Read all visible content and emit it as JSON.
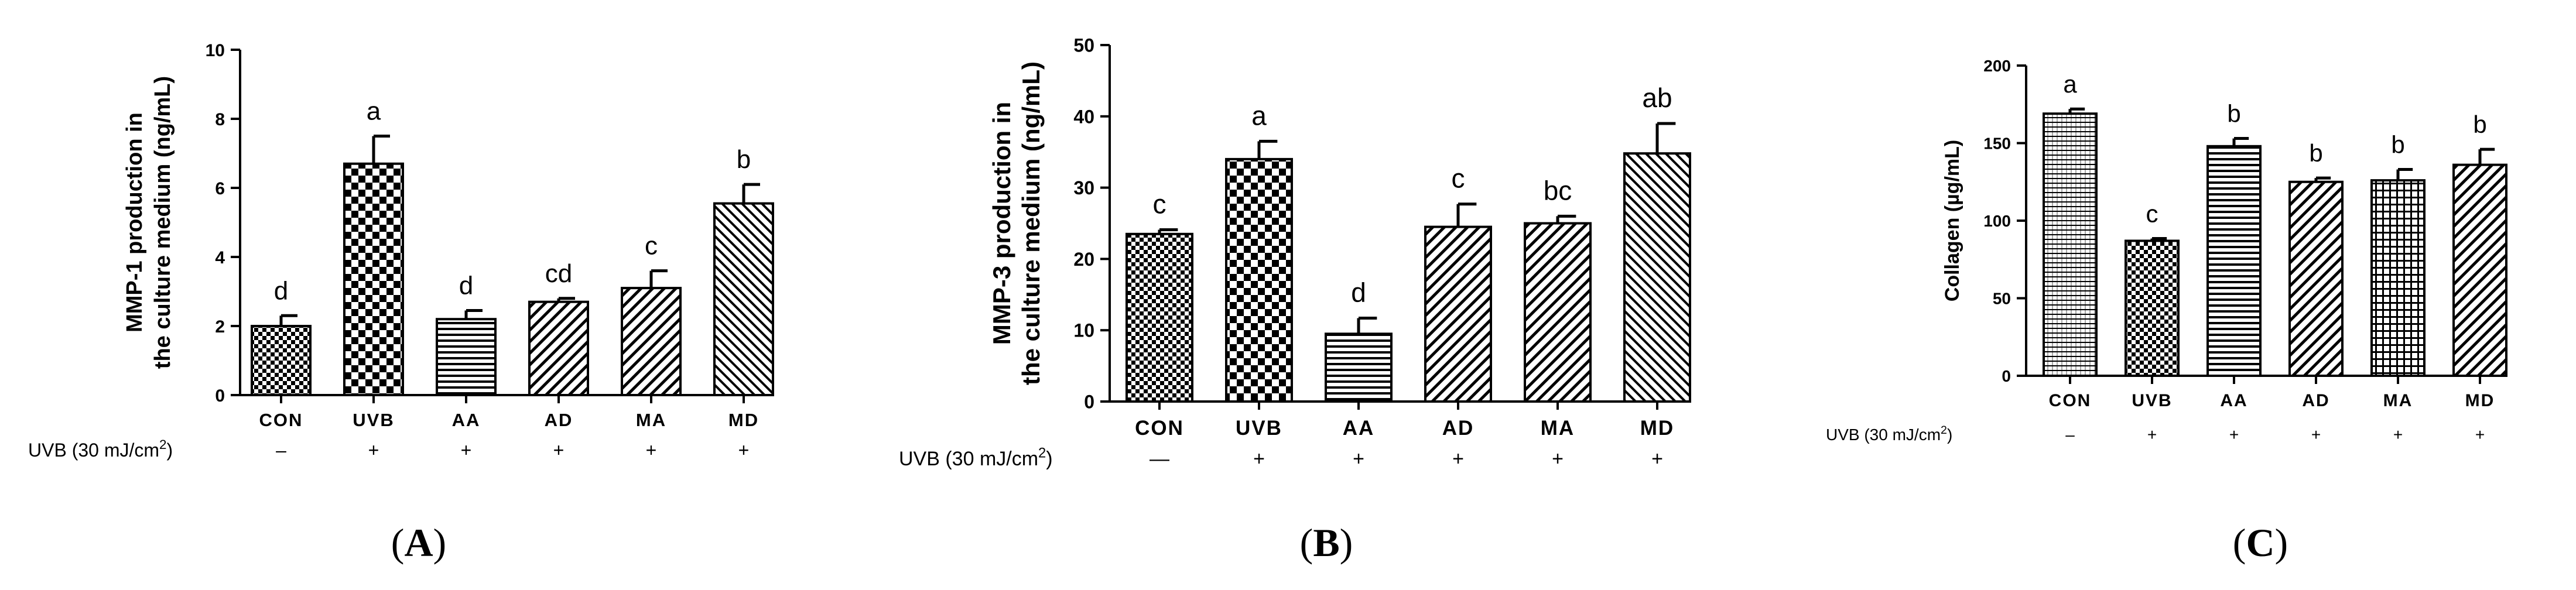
{
  "chart_data": [
    {
      "type": "bar",
      "panel_label_letter": "A",
      "title": "",
      "ylabel_line1": "MMP-1 production in",
      "ylabel_line2": "the culture medium (ng/mL)",
      "ylim": [
        0,
        10
      ],
      "yticks": [
        0,
        2,
        4,
        6,
        8,
        10
      ],
      "yticks_text": [
        "0",
        "2",
        "4",
        "6",
        "8",
        "10"
      ],
      "categories": [
        "CON",
        "UVB",
        "AA",
        "AD",
        "MA",
        "MD"
      ],
      "values": [
        2.0,
        6.7,
        2.2,
        2.7,
        3.1,
        5.55
      ],
      "errors": [
        0.3,
        0.8,
        0.25,
        0.1,
        0.5,
        0.55
      ],
      "significance": [
        "d",
        "a",
        "d",
        "cd",
        "c",
        "b"
      ],
      "patterns": [
        "checker",
        "checker-bold",
        "horizontal",
        "diag-right",
        "diag-right",
        "diag-left"
      ],
      "uvb_label": "UVB (30 mJ/cm",
      "uvb_sup": "2",
      "uvb_close": ")",
      "uvb_signs": [
        "–",
        "+",
        "+",
        "+",
        "+",
        "+"
      ]
    },
    {
      "type": "bar",
      "panel_label_letter": "B",
      "title": "",
      "ylabel_line1": "MMP-3 production in",
      "ylabel_line2": "the culture medium (ng/mL)",
      "ylim": [
        0,
        50
      ],
      "yticks": [
        0,
        10,
        20,
        30,
        40,
        50
      ],
      "yticks_text": [
        "0",
        "10",
        "20",
        "30",
        "40",
        "50"
      ],
      "categories": [
        "CON",
        "UVB",
        "AA",
        "AD",
        "MA",
        "MD"
      ],
      "values": [
        23.5,
        34.0,
        9.5,
        24.5,
        25.0,
        34.8
      ],
      "errors": [
        0.6,
        2.5,
        2.2,
        3.2,
        1.0,
        4.2
      ],
      "significance": [
        "c",
        "a",
        "d",
        "c",
        "bc",
        "ab"
      ],
      "patterns": [
        "checker",
        "checker-bold",
        "horizontal",
        "diag-right",
        "diag-right",
        "diag-left"
      ],
      "uvb_label": "UVB (30 mJ/cm",
      "uvb_sup": "2",
      "uvb_close": ")",
      "uvb_signs": [
        "—",
        "+",
        "+",
        "+",
        "+",
        "+"
      ]
    },
    {
      "type": "bar",
      "panel_label_letter": "C",
      "title": "",
      "ylabel_line1": "Collagen (µg/mL)",
      "ylabel_line2": "",
      "ylim": [
        0,
        200
      ],
      "yticks": [
        0,
        50,
        100,
        150,
        200
      ],
      "yticks_text": [
        "0",
        "50",
        "100",
        "150",
        "200"
      ],
      "categories": [
        "CON",
        "UVB",
        "AA",
        "AD",
        "MA",
        "MD"
      ],
      "values": [
        169,
        87,
        148,
        125,
        126,
        136
      ],
      "errors": [
        3,
        1.5,
        5,
        2.5,
        7,
        10
      ],
      "significance": [
        "a",
        "c",
        "b",
        "b",
        "b",
        "b"
      ],
      "patterns": [
        "horiz-fine",
        "checker",
        "horizontal",
        "diag-right",
        "grid",
        "diag-right"
      ],
      "uvb_label": "UVB (30 mJ/cm",
      "uvb_sup": "2",
      "uvb_close": ")",
      "uvb_signs": [
        "–",
        "+",
        "+",
        "+",
        "+",
        "+"
      ]
    }
  ]
}
